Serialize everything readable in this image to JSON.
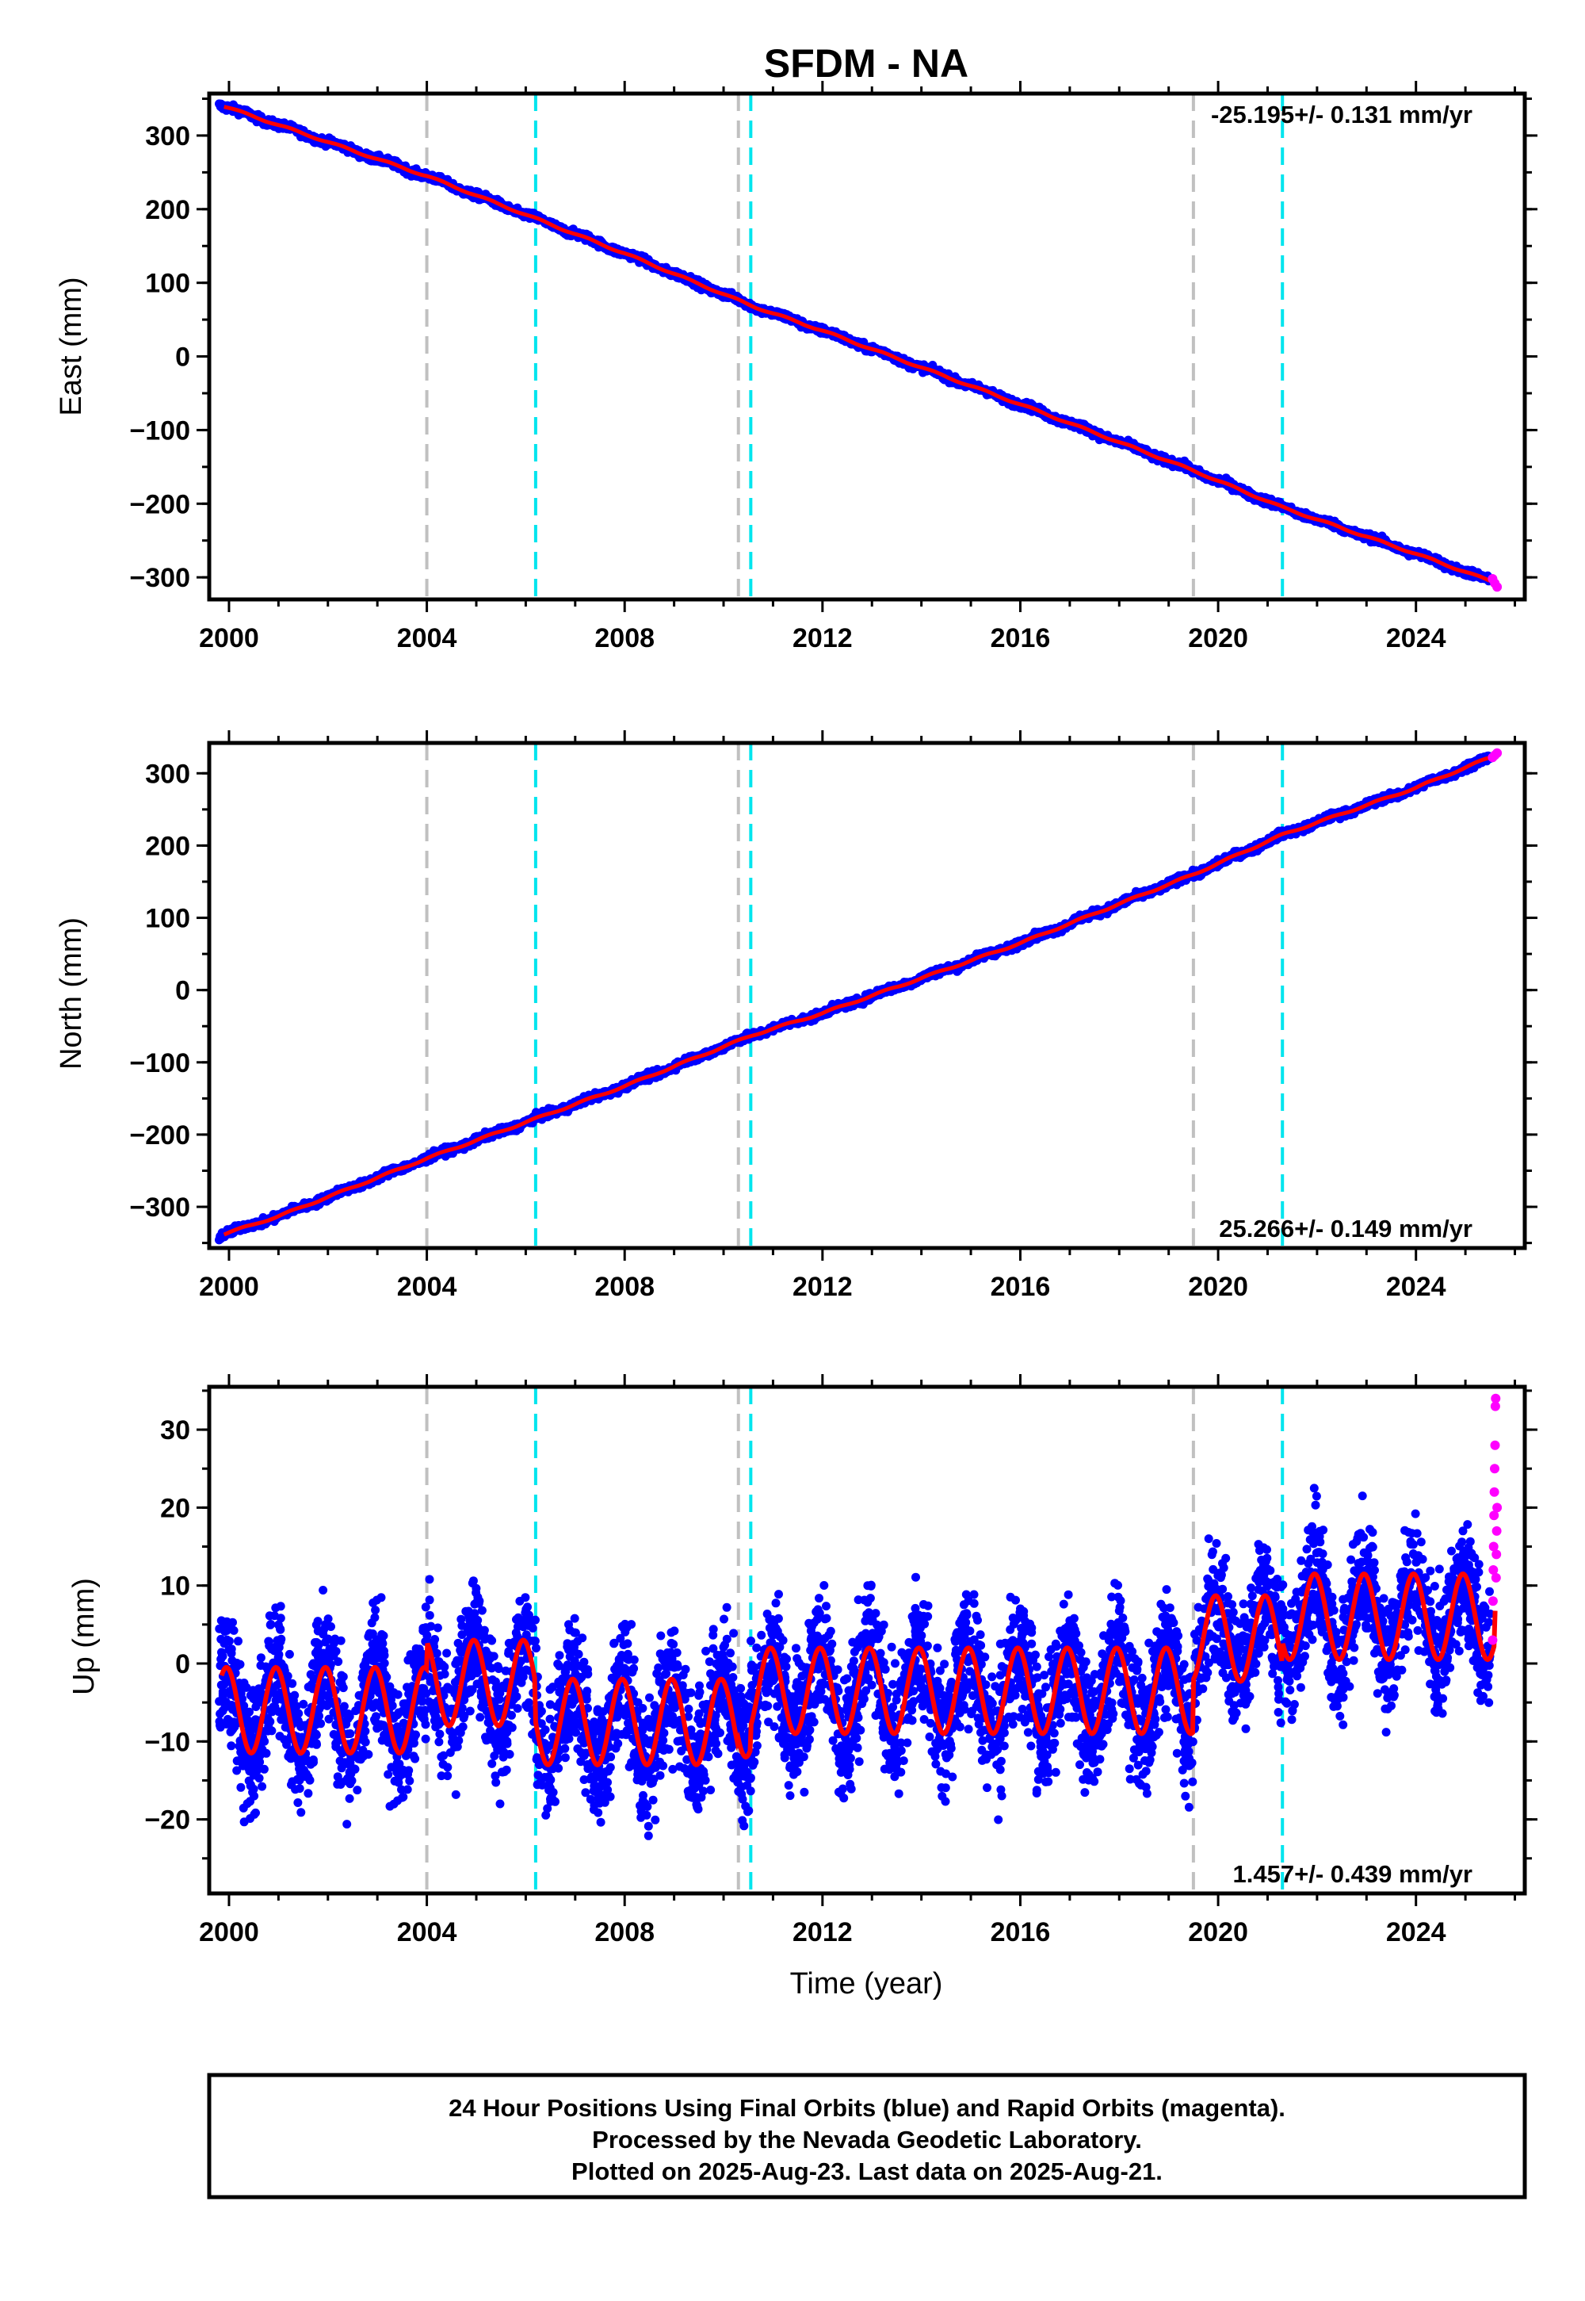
{
  "title": "SFDM - NA",
  "xlabel": "Time (year)",
  "footer": {
    "line1": "24 Hour Positions Using Final Orbits (blue) and Rapid Orbits (magenta).",
    "line2": "Processed by the Nevada Geodetic Laboratory.",
    "line3": "Plotted on 2025-Aug-23. Last data on 2025-Aug-21."
  },
  "colors": {
    "final": "#0000ff",
    "rapid": "#ff00ff",
    "model": "#ff0000",
    "equipment_change": "#c0c0c0",
    "earthquake": "#00e5ee"
  },
  "chart_data": [
    {
      "type": "scatter",
      "component": "east",
      "ylabel": "East (mm)",
      "rate_label": "-25.195+/- 0.131 mm/yr",
      "xlim": [
        1999.6,
        2026.2
      ],
      "ylim": [
        -330,
        357
      ],
      "x_ticks": [
        "2000",
        "2004",
        "2008",
        "2012",
        "2016",
        "2020",
        "2024"
      ],
      "y_ticks": [
        "300",
        "200",
        "100",
        "0",
        "−100",
        "−200",
        "−300"
      ],
      "y_tick_values": [
        300,
        200,
        100,
        0,
        -100,
        -200,
        -300
      ],
      "fit": {
        "start": [
          1999.9,
          340
        ],
        "end": [
          2025.6,
          -310
        ]
      },
      "series": [
        {
          "name": "Final Orbits (blue)",
          "x_range": [
            1999.8,
            2025.5
          ],
          "trend_points": [
            [
              1999.8,
              342
            ],
            [
              2004.0,
              245
            ],
            [
              2008.0,
              140
            ],
            [
              2010.6,
              68
            ],
            [
              2012.0,
              35
            ],
            [
              2016.0,
              -65
            ],
            [
              2019.5,
              -155
            ],
            [
              2021.3,
              -205
            ],
            [
              2024.0,
              -268
            ],
            [
              2025.5,
              -305
            ]
          ],
          "scatter_mm": 2.5
        },
        {
          "name": "Rapid Orbits (magenta)",
          "x_range": [
            2025.55,
            2025.64
          ],
          "values_mm": [
            -302,
            -308,
            -313
          ]
        }
      ],
      "vlines": {
        "equipment_change": [
          2004.0,
          2010.3,
          2019.5
        ],
        "earthquake": [
          2006.2,
          2010.55,
          2021.3
        ]
      }
    },
    {
      "type": "scatter",
      "component": "north",
      "ylabel": "North (mm)",
      "rate_label": "25.266+/- 0.149 mm/yr",
      "xlim": [
        1999.6,
        2026.2
      ],
      "ylim": [
        -357,
        342
      ],
      "x_ticks": [
        "2000",
        "2004",
        "2008",
        "2012",
        "2016",
        "2020",
        "2024"
      ],
      "y_ticks": [
        "300",
        "200",
        "100",
        "0",
        "−100",
        "−200",
        "−300"
      ],
      "y_tick_values": [
        300,
        200,
        100,
        0,
        -100,
        -200,
        -300
      ],
      "fit": {
        "start": [
          1999.9,
          -338
        ],
        "end": [
          2025.6,
          327
        ]
      },
      "series": [
        {
          "name": "Final Orbits (blue)",
          "x_range": [
            1999.8,
            2025.5
          ],
          "trend_points": [
            [
              1999.8,
              -340
            ],
            [
              2001.0,
              -313
            ],
            [
              2004.0,
              -233
            ],
            [
              2008.0,
              -133
            ],
            [
              2010.6,
              -62
            ],
            [
              2012.0,
              -32
            ],
            [
              2016.0,
              65
            ],
            [
              2019.5,
              160
            ],
            [
              2021.3,
              215
            ],
            [
              2024.0,
              280
            ],
            [
              2025.5,
              322
            ]
          ],
          "scatter_mm": 2.5
        },
        {
          "name": "Rapid Orbits (magenta)",
          "x_range": [
            2025.55,
            2025.64
          ],
          "values_mm": [
            322,
            325,
            328
          ]
        }
      ],
      "vlines": {
        "equipment_change": [
          2004.0,
          2010.3,
          2019.5
        ],
        "earthquake": [
          2006.2,
          2010.55,
          2021.3
        ]
      }
    },
    {
      "type": "scatter",
      "component": "up",
      "ylabel": "Up (mm)",
      "rate_label": "1.457+/- 0.439 mm/yr",
      "xlim": [
        1999.6,
        2026.2
      ],
      "ylim": [
        -29.5,
        35.5
      ],
      "x_ticks": [
        "2000",
        "2004",
        "2008",
        "2012",
        "2016",
        "2020",
        "2024"
      ],
      "y_ticks": [
        "30",
        "20",
        "10",
        "0",
        "−10",
        "−20"
      ],
      "y_tick_values": [
        30,
        20,
        10,
        0,
        -10,
        -20
      ],
      "seasonal_model": {
        "amplitude_mm": 5.5,
        "offsets": [
          [
            1999.8,
            -6.0
          ],
          [
            2004.0,
            -2.5
          ],
          [
            2006.2,
            -7.5
          ],
          [
            2010.3,
            -6.5
          ],
          [
            2010.55,
            -3.5
          ],
          [
            2019.5,
            3.2
          ],
          [
            2021.3,
            6.0
          ],
          [
            2025.6,
            10.0
          ]
        ]
      },
      "series": [
        {
          "name": "Final Orbits (blue)",
          "x_range": [
            1999.8,
            2025.5
          ],
          "scatter_mm": 4.0,
          "min_mm": -28,
          "max_mm": 27
        },
        {
          "name": "Rapid Orbits (magenta)",
          "x_range": [
            2025.55,
            2025.64
          ],
          "values_mm": [
            3,
            8,
            12,
            15,
            19,
            22,
            25,
            28,
            33,
            34,
            11,
            14,
            17,
            20
          ]
        }
      ],
      "vlines": {
        "equipment_change": [
          2004.0,
          2010.3,
          2019.5
        ],
        "earthquake": [
          2006.2,
          2010.55,
          2021.3
        ]
      }
    }
  ]
}
